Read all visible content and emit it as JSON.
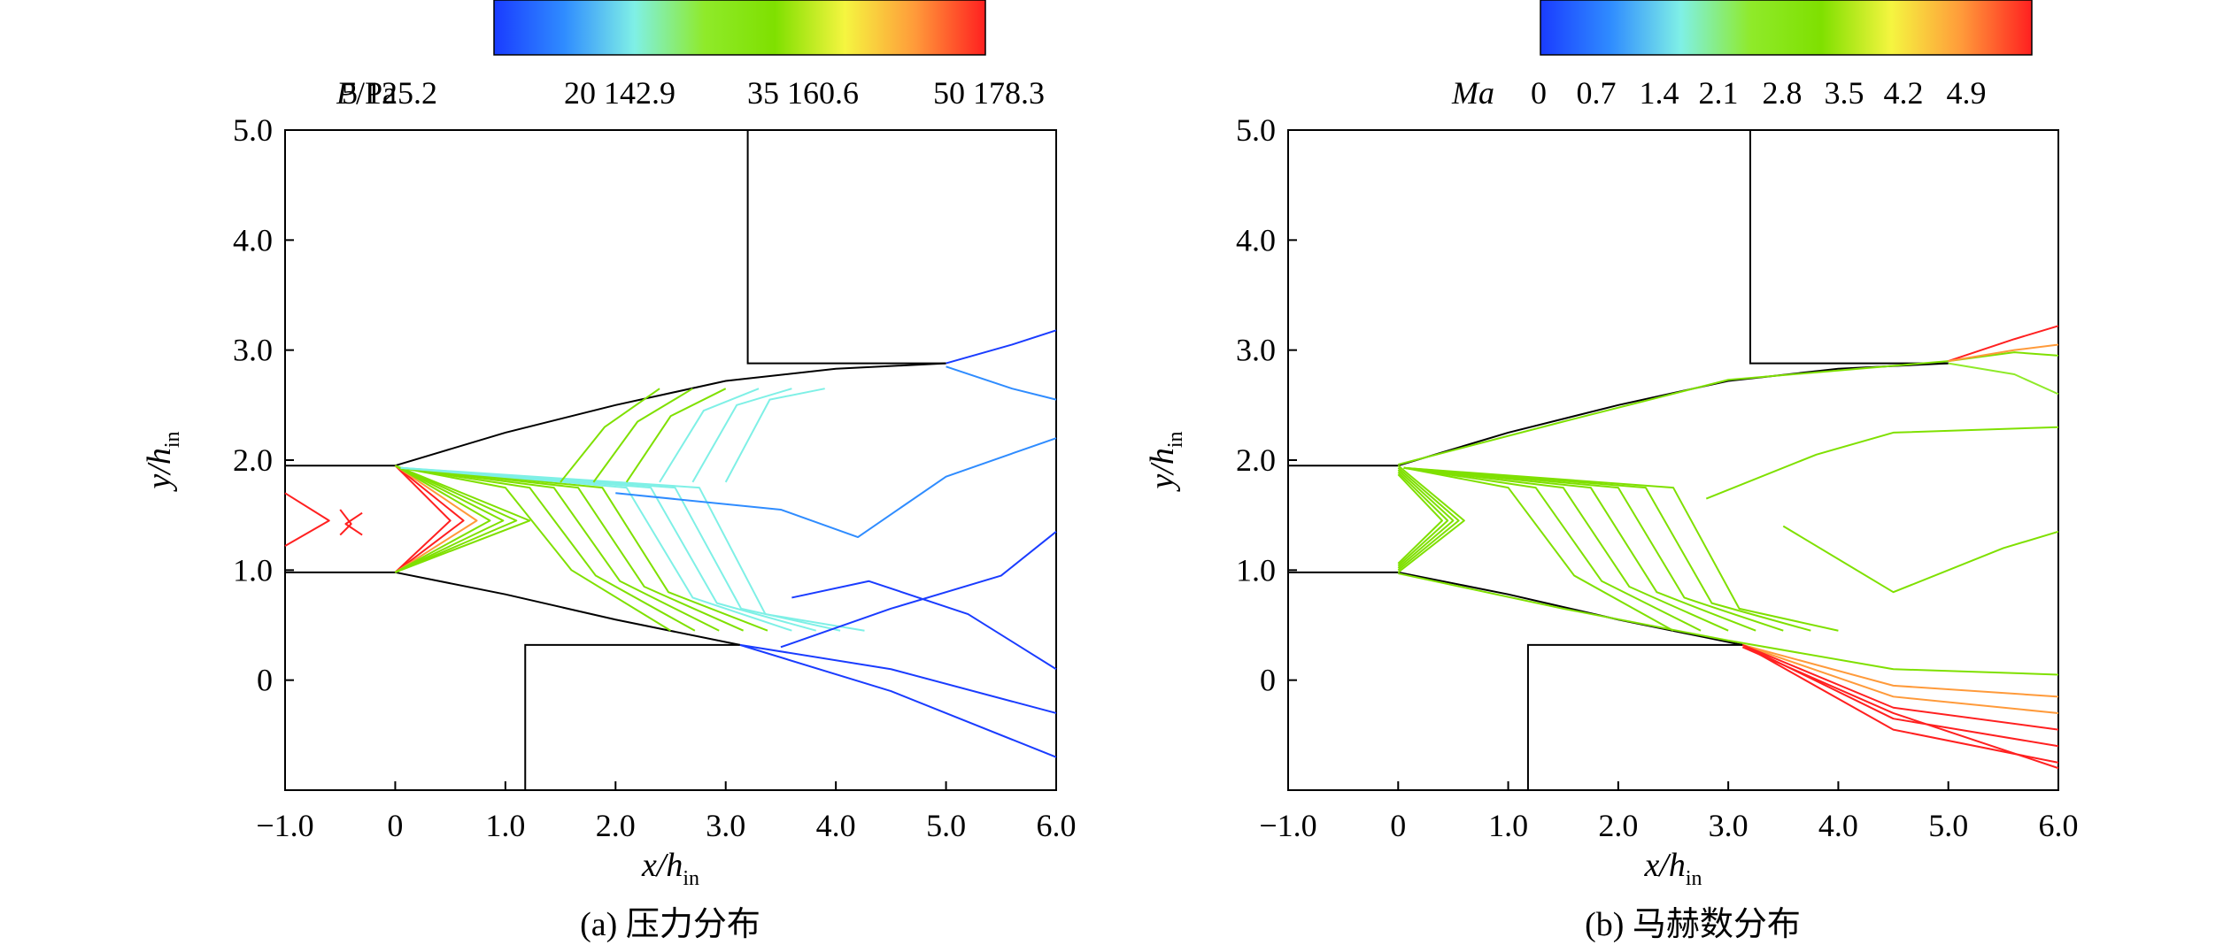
{
  "colors": {
    "colormap": [
      "#1a3cff",
      "#2f8cff",
      "#7ff0e6",
      "#8fea2a",
      "#7fe000",
      "#f5f540",
      "#ff9a3a",
      "#ff2020"
    ],
    "frame": "#000000"
  },
  "chart_data": [
    {
      "type": "contour",
      "caption": "(a) 压力分布",
      "xlabel": "x/h",
      "xlabel_sub": "in",
      "ylabel": "y/h",
      "ylabel_sub": "in",
      "xlim": [
        -1.0,
        6.0
      ],
      "ylim": [
        -1.0,
        5.0
      ],
      "xticks": [
        -1.0,
        0,
        1.0,
        2.0,
        3.0,
        4.0,
        5.0,
        6.0
      ],
      "xtick_labels": [
        "−1.0",
        "0",
        "1.0",
        "2.0",
        "3.0",
        "4.0",
        "5.0",
        "6.0"
      ],
      "yticks": [
        0,
        1.0,
        2.0,
        3.0,
        4.0,
        5.0
      ],
      "ytick_labels": [
        "0",
        "1.0",
        "2.0",
        "3.0",
        "4.0",
        "5.0"
      ],
      "colorbar": {
        "label_italic": "P",
        "label_rest": "/Pa",
        "ticks": [
          "5 125.2",
          "20 142.9",
          "35 160.6",
          "50 178.3"
        ]
      },
      "geometry": {
        "inlet_upper": [
          [
            -1.0,
            1.95
          ],
          [
            0,
            1.95
          ]
        ],
        "inlet_lower": [
          [
            -1.0,
            0.98
          ],
          [
            0,
            0.98
          ]
        ],
        "upper_wall": [
          [
            0,
            1.95
          ],
          [
            1.0,
            2.25
          ],
          [
            2.0,
            2.5
          ],
          [
            3.0,
            2.72
          ],
          [
            4.0,
            2.83
          ],
          [
            5.0,
            2.88
          ]
        ],
        "lower_wall": [
          [
            0,
            0.98
          ],
          [
            1.0,
            0.78
          ],
          [
            2.0,
            0.55
          ],
          [
            3.13,
            0.32
          ]
        ],
        "upper_block": [
          [
            3.2,
            5.0
          ],
          [
            3.2,
            2.88
          ],
          [
            5.0,
            2.88
          ]
        ],
        "lower_block": [
          [
            1.18,
            -1.0
          ],
          [
            1.18,
            0.32
          ],
          [
            3.13,
            0.32
          ]
        ]
      }
    },
    {
      "type": "contour",
      "caption": "(b) 马赫数分布",
      "xlabel": "x/h",
      "xlabel_sub": "in",
      "ylabel": "y/h",
      "ylabel_sub": "in",
      "xlim": [
        -1.0,
        6.0
      ],
      "ylim": [
        -1.0,
        5.0
      ],
      "xticks": [
        -1.0,
        0,
        1.0,
        2.0,
        3.0,
        4.0,
        5.0,
        6.0
      ],
      "xtick_labels": [
        "−1.0",
        "0",
        "1.0",
        "2.0",
        "3.0",
        "4.0",
        "5.0",
        "6.0"
      ],
      "yticks": [
        0,
        1.0,
        2.0,
        3.0,
        4.0,
        5.0
      ],
      "ytick_labels": [
        "0",
        "1.0",
        "2.0",
        "3.0",
        "4.0",
        "5.0"
      ],
      "colorbar": {
        "label_italic": "Ma",
        "label_rest": "",
        "ticks": [
          "0",
          "0.7",
          "1.4",
          "2.1",
          "2.8",
          "3.5",
          "4.2",
          "4.9"
        ]
      },
      "geometry": {
        "inlet_upper": [
          [
            -1.0,
            1.95
          ],
          [
            0,
            1.95
          ]
        ],
        "inlet_lower": [
          [
            -1.0,
            0.98
          ],
          [
            0,
            0.98
          ]
        ],
        "upper_wall": [
          [
            0,
            1.95
          ],
          [
            1.0,
            2.25
          ],
          [
            2.0,
            2.5
          ],
          [
            3.0,
            2.72
          ],
          [
            4.0,
            2.83
          ],
          [
            5.0,
            2.88
          ]
        ],
        "lower_wall": [
          [
            0,
            0.98
          ],
          [
            1.0,
            0.78
          ],
          [
            2.0,
            0.55
          ],
          [
            3.13,
            0.32
          ]
        ],
        "upper_block": [
          [
            3.2,
            5.0
          ],
          [
            3.2,
            2.88
          ],
          [
            5.0,
            2.88
          ]
        ],
        "lower_block": [
          [
            1.18,
            -1.0
          ],
          [
            1.18,
            0.32
          ],
          [
            3.13,
            0.32
          ]
        ]
      }
    }
  ]
}
